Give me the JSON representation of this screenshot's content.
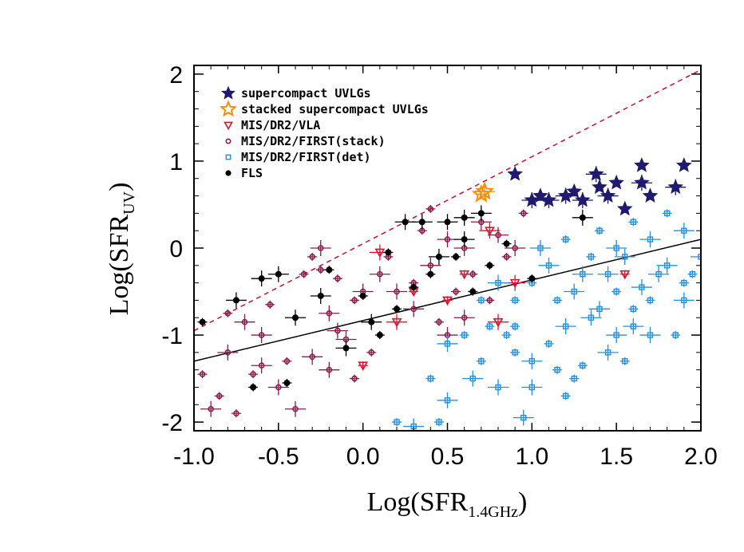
{
  "chart_data": {
    "type": "scatter",
    "xlabel": "Log(SFR",
    "xlabel_sub": "1.4GHz",
    "xlabel_close": ")",
    "ylabel": "Log(SFR",
    "ylabel_sub": "UV",
    "ylabel_close": ")",
    "xlim": [
      -1.0,
      2.0
    ],
    "ylim": [
      -2.1,
      2.1
    ],
    "x_ticks": [
      -1.0,
      -0.5,
      0.0,
      0.5,
      1.0,
      1.5,
      2.0
    ],
    "x_tick_labels": [
      "-1.0",
      "-0.5",
      "0.0",
      "0.5",
      "1.0",
      "1.5",
      "2.0"
    ],
    "y_ticks": [
      -2,
      -1,
      0,
      1,
      2
    ],
    "y_tick_labels": [
      "-2",
      "-1",
      "0",
      "1",
      "2"
    ],
    "legend_position": "top-left",
    "lines": [
      {
        "name": "one-to-one",
        "style": "dashed",
        "color": "#c8102e",
        "x": [
          -1.0,
          2.0
        ],
        "y": [
          -0.95,
          2.05
        ]
      },
      {
        "name": "fit",
        "style": "solid",
        "color": "#000000",
        "x": [
          -1.0,
          2.0
        ],
        "y": [
          -1.3,
          0.1
        ]
      }
    ],
    "series": [
      {
        "name": "supercompact UVLGs",
        "marker": "star-filled",
        "color": "#1f1a6e",
        "points": [
          [
            0.9,
            0.85
          ],
          [
            1.0,
            0.55
          ],
          [
            1.05,
            0.6
          ],
          [
            1.2,
            0.6
          ],
          [
            1.25,
            0.65
          ],
          [
            1.3,
            0.55
          ],
          [
            1.4,
            0.7
          ],
          [
            1.45,
            0.6
          ],
          [
            1.5,
            0.75
          ],
          [
            1.38,
            0.85
          ],
          [
            1.65,
            0.95
          ],
          [
            1.65,
            0.75
          ],
          [
            1.7,
            0.6
          ],
          [
            1.85,
            0.7
          ],
          [
            1.9,
            0.95
          ],
          [
            1.1,
            0.55
          ],
          [
            1.55,
            0.45
          ]
        ]
      },
      {
        "name": "stacked supercompact UVLGs",
        "marker": "star-open",
        "color": "#ff8c00",
        "points": [
          [
            0.7,
            0.62
          ],
          [
            0.72,
            0.65
          ]
        ]
      },
      {
        "name": "MIS/DR2/VLA",
        "marker": "triangle",
        "color": "#e0102e",
        "points": [
          [
            0.0,
            -1.35
          ],
          [
            0.2,
            -0.85
          ],
          [
            0.6,
            -0.3
          ],
          [
            0.8,
            -0.85
          ],
          [
            1.55,
            -0.3
          ],
          [
            0.1,
            -0.05
          ],
          [
            0.5,
            -0.6
          ],
          [
            0.9,
            -0.4
          ],
          [
            0.3,
            -0.5
          ],
          [
            0.75,
            0.2
          ]
        ]
      },
      {
        "name": "MIS/DR2/FIRST(stack)",
        "marker": "circle-open",
        "color": "#8b1a4a",
        "points": [
          [
            -0.95,
            -1.45
          ],
          [
            -0.9,
            -1.85
          ],
          [
            -0.85,
            -1.7
          ],
          [
            -0.8,
            -1.2
          ],
          [
            -0.75,
            -1.9
          ],
          [
            -0.7,
            -0.85
          ],
          [
            -0.65,
            -1.45
          ],
          [
            -0.6,
            -1.0
          ],
          [
            -0.55,
            -0.65
          ],
          [
            -0.5,
            -1.6
          ],
          [
            -0.45,
            -1.3
          ],
          [
            -0.4,
            -1.85
          ],
          [
            -0.35,
            -0.3
          ],
          [
            -0.3,
            -1.25
          ],
          [
            -0.25,
            -0.25
          ],
          [
            -0.2,
            -1.4
          ],
          [
            -0.15,
            -0.35
          ],
          [
            -0.1,
            -1.05
          ],
          [
            -0.05,
            -0.6
          ],
          [
            -0.25,
            0.0
          ],
          [
            -0.3,
            -0.1
          ],
          [
            -0.15,
            -0.95
          ],
          [
            -0.05,
            -1.5
          ],
          [
            0.0,
            -0.5
          ],
          [
            0.05,
            -1.2
          ],
          [
            0.1,
            -0.3
          ],
          [
            0.15,
            -0.1
          ],
          [
            0.2,
            -0.5
          ],
          [
            0.25,
            0.3
          ],
          [
            0.3,
            -0.7
          ],
          [
            0.35,
            0.2
          ],
          [
            0.4,
            -0.2
          ],
          [
            0.45,
            -0.85
          ],
          [
            0.5,
            0.1
          ],
          [
            0.55,
            -0.5
          ],
          [
            0.6,
            0.0
          ],
          [
            0.65,
            -0.3
          ],
          [
            0.7,
            0.3
          ],
          [
            0.75,
            -0.6
          ],
          [
            0.8,
            0.15
          ],
          [
            0.85,
            -0.1
          ],
          [
            0.9,
            0.0
          ],
          [
            0.95,
            0.4
          ],
          [
            0.5,
            -1.0
          ],
          [
            0.3,
            -0.4
          ],
          [
            -0.6,
            -1.35
          ],
          [
            -0.8,
            -0.75
          ],
          [
            -0.2,
            -0.75
          ],
          [
            0.4,
            0.45
          ],
          [
            0.6,
            -0.8
          ]
        ]
      },
      {
        "name": "MIS/DR2/FIRST(det)",
        "marker": "square-open",
        "color": "#1e90e6",
        "points": [
          [
            0.2,
            -2.0
          ],
          [
            0.3,
            -2.05
          ],
          [
            0.4,
            -1.5
          ],
          [
            0.5,
            -1.75
          ],
          [
            0.7,
            -1.3
          ],
          [
            0.8,
            -1.6
          ],
          [
            0.9,
            -1.2
          ],
          [
            1.0,
            -1.3
          ],
          [
            1.1,
            -1.1
          ],
          [
            1.2,
            -0.9
          ],
          [
            1.3,
            -1.35
          ],
          [
            1.4,
            -0.7
          ],
          [
            1.5,
            -0.5
          ],
          [
            1.6,
            -0.9
          ],
          [
            1.7,
            -0.6
          ],
          [
            1.8,
            -0.2
          ],
          [
            1.9,
            -0.4
          ],
          [
            2.0,
            -0.1
          ],
          [
            1.0,
            -0.4
          ],
          [
            1.1,
            -0.2
          ],
          [
            1.2,
            0.1
          ],
          [
            1.3,
            -0.3
          ],
          [
            1.4,
            0.2
          ],
          [
            1.5,
            0.0
          ],
          [
            1.6,
            0.3
          ],
          [
            1.7,
            0.1
          ],
          [
            1.8,
            0.4
          ],
          [
            1.9,
            0.2
          ],
          [
            0.9,
            -0.9
          ],
          [
            1.0,
            -1.6
          ],
          [
            1.2,
            -1.7
          ],
          [
            1.5,
            -1.0
          ],
          [
            1.55,
            -1.3
          ],
          [
            1.7,
            -1.0
          ],
          [
            1.85,
            -1.0
          ],
          [
            1.9,
            -0.6
          ],
          [
            0.6,
            -1.0
          ],
          [
            0.5,
            -1.1
          ],
          [
            0.7,
            -0.6
          ],
          [
            0.8,
            -0.4
          ],
          [
            0.9,
            -0.6
          ],
          [
            1.05,
            0.0
          ],
          [
            1.15,
            -0.6
          ],
          [
            1.25,
            -0.5
          ],
          [
            1.35,
            -0.1
          ],
          [
            1.45,
            -0.3
          ],
          [
            1.6,
            -0.7
          ],
          [
            1.75,
            -0.3
          ],
          [
            0.45,
            -2.0
          ],
          [
            0.95,
            -1.95
          ],
          [
            1.25,
            -1.5
          ],
          [
            1.45,
            -1.2
          ],
          [
            1.15,
            -1.4
          ],
          [
            0.65,
            -1.5
          ],
          [
            0.85,
            -1.0
          ],
          [
            1.65,
            -0.45
          ],
          [
            1.95,
            -0.3
          ],
          [
            1.35,
            -0.8
          ],
          [
            0.75,
            -0.9
          ],
          [
            1.55,
            -0.1
          ]
        ]
      },
      {
        "name": "FLS",
        "marker": "circle-filled",
        "color": "#000000",
        "points": [
          [
            -0.95,
            -0.85
          ],
          [
            -0.75,
            -0.6
          ],
          [
            -0.65,
            -1.6
          ],
          [
            -0.5,
            -0.3
          ],
          [
            -0.45,
            -1.55
          ],
          [
            -0.4,
            -0.8
          ],
          [
            -0.2,
            -0.25
          ],
          [
            -0.1,
            -1.15
          ],
          [
            0.0,
            -0.55
          ],
          [
            0.05,
            -0.85
          ],
          [
            0.15,
            -0.05
          ],
          [
            0.25,
            0.3
          ],
          [
            0.3,
            -0.45
          ],
          [
            0.35,
            0.3
          ],
          [
            0.4,
            -0.3
          ],
          [
            0.5,
            0.3
          ],
          [
            0.55,
            -0.1
          ],
          [
            0.6,
            0.35
          ],
          [
            0.65,
            -0.5
          ],
          [
            0.7,
            0.4
          ],
          [
            0.75,
            -0.2
          ],
          [
            1.3,
            0.35
          ],
          [
            1.0,
            -0.35
          ],
          [
            -0.25,
            -0.55
          ],
          [
            0.1,
            -1.0
          ],
          [
            0.45,
            -0.1
          ],
          [
            0.2,
            -0.7
          ],
          [
            -0.6,
            -0.35
          ],
          [
            0.85,
            0.05
          ],
          [
            0.6,
            0.1
          ]
        ]
      }
    ]
  },
  "legend": {
    "items": [
      {
        "label": "supercompact UVLGs",
        "color": "#1f1a6e",
        "marker": "star-filled"
      },
      {
        "label": "stacked supercompact UVLGs",
        "color": "#ff8c00",
        "marker": "star-open"
      },
      {
        "label": "MIS/DR2/VLA",
        "color": "#e0102e",
        "marker": "triangle"
      },
      {
        "label": "MIS/DR2/FIRST(stack)",
        "color": "#8b1a4a",
        "marker": "circle-open"
      },
      {
        "label": "MIS/DR2/FIRST(det)",
        "color": "#1e90e6",
        "marker": "square-open"
      },
      {
        "label": "FLS",
        "color": "#000000",
        "marker": "circle-filled"
      }
    ]
  }
}
